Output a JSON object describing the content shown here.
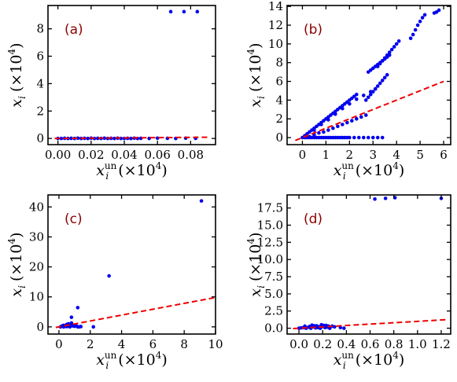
{
  "colors": {
    "points": "#0000ee",
    "fit_line": "#ee0000",
    "panel_label": "#8b0000"
  },
  "chart_data": [
    {
      "type": "scatter",
      "panel_label": "(a)",
      "xlabel_var": "x",
      "xlabel_sub": "i",
      "xlabel_sup": "un",
      "xlabel_unit": "(×10",
      "ylabel_var": "x",
      "ylabel_sub": "i",
      "ylabel_unit": "(×10",
      "unit_exp": "4",
      "xlim": [
        -0.006,
        0.095
      ],
      "ylim": [
        -0.45,
        9.7
      ],
      "xticks": [
        0.0,
        0.02,
        0.04,
        0.06,
        0.08
      ],
      "xtick_labels": [
        "0.00",
        "0.02",
        "0.04",
        "0.06",
        "0.08"
      ],
      "yticks": [
        0,
        2,
        4,
        6,
        8
      ],
      "ytick_labels": [
        "0",
        "2",
        "4",
        "6",
        "8"
      ],
      "fit_line": {
        "x": [
          -0.002,
          0.09
        ],
        "y": [
          0.0,
          0.09
        ]
      },
      "points": {
        "x": [
          0.0,
          0.002,
          0.004,
          0.006,
          0.008,
          0.01,
          0.012,
          0.014,
          0.016,
          0.018,
          0.02,
          0.022,
          0.024,
          0.026,
          0.028,
          0.03,
          0.032,
          0.034,
          0.036,
          0.038,
          0.04,
          0.042,
          0.044,
          0.046,
          0.048,
          0.05,
          0.055,
          0.06,
          0.066,
          0.071,
          0.077,
          0.083,
          0.068,
          0.076,
          0.084
        ],
        "y": [
          0.0,
          0.0,
          0.01,
          0.0,
          0.01,
          0.0,
          0.02,
          0.0,
          0.01,
          0.0,
          0.02,
          0.0,
          0.01,
          0.0,
          0.02,
          0.0,
          0.01,
          0.0,
          0.02,
          0.0,
          0.0,
          0.01,
          0.0,
          0.02,
          0.0,
          0.01,
          0.0,
          0.02,
          0.01,
          0.0,
          0.02,
          0.01,
          9.25,
          9.25,
          9.25
        ]
      }
    },
    {
      "type": "scatter",
      "panel_label": "(b)",
      "xlabel_var": "x",
      "xlabel_sub": "i",
      "xlabel_sup": "un",
      "xlabel_unit": "(×10",
      "ylabel_var": "x",
      "ylabel_sub": "i",
      "ylabel_unit": "(×10",
      "unit_exp": "4",
      "xlim": [
        -0.65,
        6.3
      ],
      "ylim": [
        -0.75,
        14.1
      ],
      "xticks": [
        0,
        1,
        2,
        3,
        4,
        5,
        6
      ],
      "xtick_labels": [
        "0",
        "1",
        "2",
        "3",
        "4",
        "5",
        "6"
      ],
      "yticks": [
        0,
        2,
        4,
        6,
        8,
        10,
        12,
        14
      ],
      "ytick_labels": [
        "0",
        "2",
        "4",
        "6",
        "8",
        "10",
        "12",
        "14"
      ],
      "fit_line": {
        "x": [
          -0.3,
          6.0
        ],
        "y": [
          -0.3,
          6.0
        ]
      },
      "points": {
        "x": [
          0.0,
          0.1,
          0.2,
          0.3,
          0.4,
          0.5,
          0.6,
          0.7,
          0.8,
          0.9,
          1.0,
          1.1,
          1.2,
          1.3,
          1.4,
          1.5,
          1.6,
          1.7,
          1.8,
          1.9,
          2.0,
          2.2,
          2.4,
          2.6,
          2.8,
          3.0,
          3.2,
          3.4,
          0.1,
          0.2,
          0.3,
          0.4,
          0.5,
          0.6,
          0.7,
          0.8,
          0.9,
          1.0,
          1.1,
          1.2,
          1.3,
          1.4,
          1.5,
          1.6,
          1.7,
          1.8,
          1.9,
          2.0,
          2.1,
          2.2,
          2.3,
          0.3,
          0.5,
          0.7,
          0.9,
          1.1,
          1.3,
          1.5,
          1.7,
          1.9,
          2.1,
          2.3,
          2.5,
          2.7,
          0.5,
          0.8,
          1.1,
          1.4,
          1.7,
          2.0,
          2.3,
          2.6,
          2.9,
          3.1,
          2.7,
          2.8,
          2.9,
          3.0,
          3.1,
          3.2,
          3.3,
          3.4,
          3.5,
          3.6,
          2.8,
          2.9,
          3.0,
          3.1,
          3.2,
          3.3,
          3.4,
          3.5,
          3.6,
          3.7,
          3.2,
          3.3,
          3.4,
          3.5,
          3.6,
          3.7,
          3.8,
          3.9,
          4.0,
          4.1,
          4.6,
          4.7,
          4.8,
          4.9,
          5.0,
          5.1,
          5.2,
          5.6,
          5.7,
          5.8
        ],
        "y": [
          0.0,
          0.0,
          0.0,
          0.0,
          0.0,
          0.0,
          0.0,
          0.0,
          0.0,
          0.0,
          0.0,
          0.0,
          0.0,
          0.0,
          0.0,
          0.0,
          0.0,
          0.0,
          0.0,
          0.0,
          0.0,
          0.0,
          0.0,
          0.0,
          0.0,
          0.0,
          0.0,
          0.0,
          0.2,
          0.4,
          0.6,
          0.8,
          1.0,
          1.2,
          1.4,
          1.6,
          1.8,
          2.0,
          2.2,
          2.4,
          2.6,
          2.8,
          3.0,
          3.2,
          3.4,
          3.6,
          3.8,
          4.0,
          4.2,
          4.4,
          4.6,
          0.1,
          0.3,
          0.5,
          0.6,
          0.8,
          1.0,
          1.2,
          1.4,
          1.6,
          1.8,
          2.0,
          2.2,
          2.4,
          0.8,
          1.4,
          1.9,
          2.5,
          3.1,
          3.6,
          4.1,
          4.5,
          4.9,
          5.2,
          4.0,
          4.3,
          4.6,
          4.9,
          5.2,
          5.5,
          5.8,
          6.1,
          6.4,
          6.7,
          7.0,
          7.2,
          7.4,
          7.6,
          7.8,
          8.0,
          8.2,
          8.4,
          8.6,
          8.8,
          7.6,
          7.9,
          8.2,
          8.5,
          8.8,
          9.1,
          9.4,
          9.7,
          10.0,
          10.3,
          10.6,
          11.0,
          11.5,
          12.0,
          12.4,
          12.8,
          13.1,
          13.3,
          13.4,
          13.6
        ]
      }
    },
    {
      "type": "scatter",
      "panel_label": "(c)",
      "xlabel_var": "x",
      "xlabel_sub": "i",
      "xlabel_sup": "un",
      "xlabel_unit": "(×10",
      "ylabel_var": "x",
      "ylabel_sub": "i",
      "ylabel_unit": "(×10",
      "unit_exp": "4",
      "xlim": [
        -0.7,
        10.0
      ],
      "ylim": [
        -2.4,
        44.0
      ],
      "xticks": [
        0,
        2,
        4,
        6,
        8,
        10
      ],
      "xtick_labels": [
        "0",
        "2",
        "4",
        "6",
        "8",
        "10"
      ],
      "yticks": [
        0,
        10,
        20,
        30,
        40
      ],
      "ytick_labels": [
        "0",
        "10",
        "20",
        "30",
        "40"
      ],
      "fit_line": {
        "x": [
          -0.2,
          9.9
        ],
        "y": [
          -0.2,
          9.7
        ]
      },
      "points": {
        "x": [
          0.1,
          0.2,
          0.3,
          0.4,
          0.5,
          0.6,
          0.7,
          0.8,
          0.9,
          1.0,
          1.2,
          1.4,
          0.3,
          0.5,
          0.7,
          0.9,
          1.1,
          1.3,
          0.8,
          2.2,
          1.2,
          3.2,
          9.1
        ],
        "y": [
          0.0,
          0.3,
          0.5,
          0.2,
          0.8,
          1.0,
          0.4,
          1.3,
          0.6,
          0.2,
          0.0,
          0.1,
          0.0,
          0.1,
          0.0,
          0.3,
          0.4,
          0.0,
          3.2,
          0.0,
          6.4,
          17.0,
          42.0
        ]
      }
    },
    {
      "type": "scatter",
      "panel_label": "(d)",
      "xlabel_var": "x",
      "xlabel_sub": "i",
      "xlabel_sup": "un",
      "xlabel_unit": "(×10",
      "ylabel_var": "x",
      "ylabel_sub": "i",
      "ylabel_unit": "(×10",
      "unit_exp": "4",
      "xlim": [
        -0.1,
        1.28
      ],
      "ylim": [
        -0.85,
        19.4
      ],
      "xticks": [
        0.0,
        0.2,
        0.4,
        0.6,
        0.8,
        1.0,
        1.2
      ],
      "xtick_labels": [
        "0.0",
        "0.2",
        "0.4",
        "0.6",
        "0.8",
        "1.0",
        "1.2"
      ],
      "yticks": [
        0.0,
        2.5,
        5.0,
        7.5,
        10.0,
        12.5,
        15.0,
        17.5
      ],
      "ytick_labels": [
        "0.0",
        "2.5",
        "5.0",
        "7.5",
        "10.0",
        "12.5",
        "15.0",
        "17.5"
      ],
      "fit_line": {
        "x": [
          -0.05,
          1.25
        ],
        "y": [
          -0.05,
          1.25
        ]
      },
      "points": {
        "x": [
          0.0,
          0.02,
          0.04,
          0.06,
          0.08,
          0.1,
          0.12,
          0.14,
          0.16,
          0.18,
          0.2,
          0.22,
          0.24,
          0.26,
          0.28,
          0.05,
          0.09,
          0.13,
          0.17,
          0.21,
          0.25,
          0.11,
          0.15,
          0.19,
          0.23,
          0.3,
          0.35,
          0.38,
          0.64,
          0.73,
          0.81,
          1.2
        ],
        "y": [
          0.0,
          0.05,
          0.1,
          0.0,
          0.15,
          0.0,
          0.2,
          0.05,
          0.1,
          0.0,
          0.25,
          0.1,
          0.15,
          0.0,
          0.3,
          0.3,
          0.25,
          0.35,
          0.2,
          0.4,
          0.3,
          0.45,
          0.35,
          0.5,
          0.4,
          0.2,
          0.1,
          0.0,
          18.8,
          18.9,
          19.0,
          18.9
        ]
      }
    }
  ]
}
